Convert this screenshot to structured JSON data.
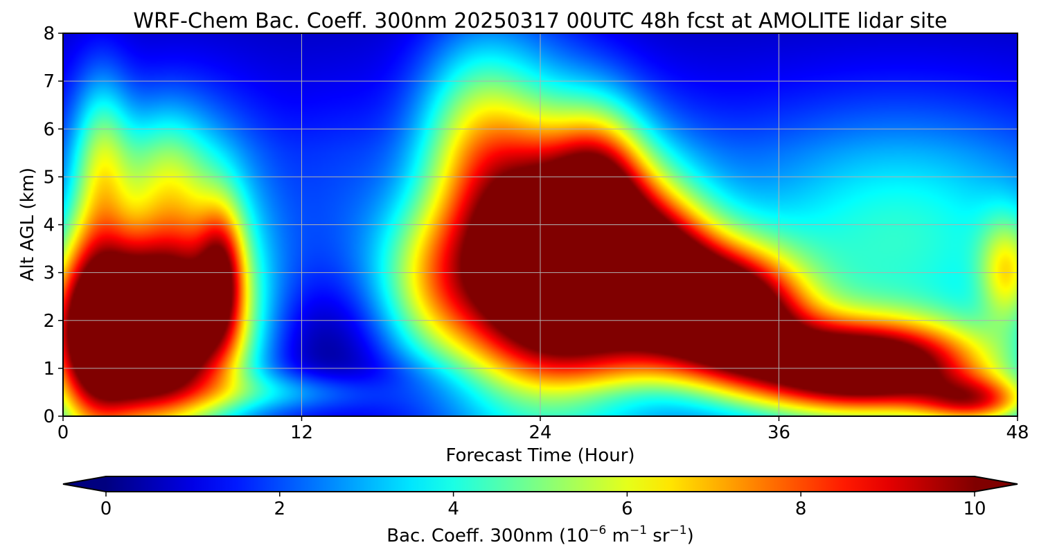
{
  "chart_data": {
    "type": "heatmap",
    "title": "WRF-Chem Bac. Coeff. 300nm  20250317 00UTC 48h fcst at AMOLITE lidar site",
    "xlabel": "Forecast Time (Hour)",
    "ylabel": "Alt AGL (km)",
    "xlim": [
      0,
      48
    ],
    "ylim": [
      0,
      8
    ],
    "xticks": [
      "0",
      "12",
      "24",
      "36",
      "48"
    ],
    "yticks": [
      "0",
      "1",
      "2",
      "3",
      "4",
      "5",
      "6",
      "7",
      "8"
    ],
    "grid": true,
    "colormap": "jet",
    "colorbar": {
      "label_prefix": "Bac. Coeff. 300nm  (10",
      "label_exp1": "−6",
      "label_mid": " m",
      "label_exp2": "−1",
      "label_mid2": " sr",
      "label_exp3": "−1",
      "label_suffix": ")",
      "range": [
        0,
        10
      ],
      "ticks": [
        "0",
        "2",
        "4",
        "6",
        "8",
        "10"
      ],
      "extend": "both",
      "under_color": "#00007f",
      "over_color": "#7f0000"
    },
    "field": {
      "description_units": "backscatter coefficient, 10^-6 m^-1 sr^-1",
      "background": 1.2,
      "features": [
        {
          "x": 4.0,
          "y": 1.7,
          "sx": 3.2,
          "sy": 1.3,
          "a": 13
        },
        {
          "x": 1.5,
          "y": 2.3,
          "sx": 1.3,
          "sy": 2.4,
          "a": 3.5
        },
        {
          "x": 6.5,
          "y": 3.8,
          "sx": 2.6,
          "sy": 1.7,
          "a": 3.5
        },
        {
          "x": 8.0,
          "y": 3.0,
          "sx": 0.8,
          "sy": 1.0,
          "a": 4
        },
        {
          "x": 2.0,
          "y": 5.5,
          "sx": 1.0,
          "sy": 1.2,
          "a": 2.5
        },
        {
          "x": 5.0,
          "y": 5.2,
          "sx": 1.5,
          "sy": 1.0,
          "a": 2.0
        },
        {
          "x": 11.5,
          "y": 0.5,
          "sx": 3.5,
          "sy": 0.3,
          "a": 1.8
        },
        {
          "x": 13.0,
          "y": 1.5,
          "sx": 2.5,
          "sy": 0.9,
          "a": -1.2
        },
        {
          "x": 14.0,
          "y": 4.5,
          "sx": 2.0,
          "sy": 1.6,
          "a": 0.6
        },
        {
          "x": 26.0,
          "y": 3.0,
          "sx": 3.6,
          "sy": 1.7,
          "a": 12
        },
        {
          "x": 22.5,
          "y": 4.0,
          "sx": 2.8,
          "sy": 2.5,
          "a": 4.5
        },
        {
          "x": 18.5,
          "y": 2.8,
          "sx": 2.2,
          "sy": 1.2,
          "a": 3.5
        },
        {
          "x": 20.5,
          "y": 6.0,
          "sx": 2.0,
          "sy": 1.4,
          "a": 2.2
        },
        {
          "x": 27.0,
          "y": 4.8,
          "sx": 1.6,
          "sy": 1.2,
          "a": 4
        },
        {
          "x": 30.0,
          "y": 3.0,
          "sx": 2.0,
          "sy": 1.0,
          "a": 5
        },
        {
          "x": 33.5,
          "y": 2.2,
          "sx": 2.6,
          "sy": 0.9,
          "a": 10
        },
        {
          "x": 40.0,
          "y": 1.0,
          "sx": 4.5,
          "sy": 0.7,
          "a": 11
        },
        {
          "x": 46.0,
          "y": 0.3,
          "sx": 2.0,
          "sy": 0.35,
          "a": 5
        },
        {
          "x": 42.0,
          "y": 3.7,
          "sx": 6.0,
          "sy": 1.8,
          "a": 3.0
        },
        {
          "x": 47.5,
          "y": 3.0,
          "sx": 1.0,
          "sy": 0.8,
          "a": 3.5
        },
        {
          "x": 28.0,
          "y": 0.4,
          "sx": 4.0,
          "sy": 0.3,
          "a": -0.6
        },
        {
          "x": 18.0,
          "y": 0.7,
          "sx": 3.0,
          "sy": 0.4,
          "a": -0.6
        }
      ]
    }
  }
}
